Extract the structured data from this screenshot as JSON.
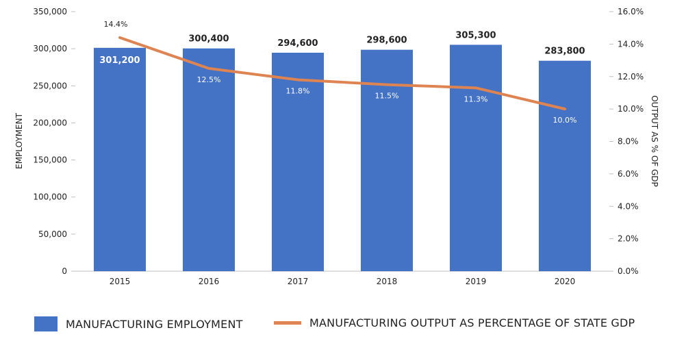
{
  "chart_data": {
    "type": "bar",
    "categories": [
      "2015",
      "2016",
      "2017",
      "2018",
      "2019",
      "2020"
    ],
    "series": [
      {
        "name": "MANUFACTURING EMPLOYMENT",
        "type": "bar",
        "axis": "left",
        "values": [
          301200,
          300400,
          294600,
          298600,
          305300,
          283800
        ],
        "labels": [
          "301,200",
          "300,400",
          "294,600",
          "298,600",
          "305,300",
          "283,800"
        ],
        "color": "#4472c4"
      },
      {
        "name": "MANUFACTURING OUTPUT AS PERCENTAGE OF STATE GDP",
        "type": "line",
        "axis": "right",
        "values": [
          14.4,
          12.5,
          11.8,
          11.5,
          11.3,
          10.0
        ],
        "labels": [
          "14.4%",
          "12.5%",
          "11.8%",
          "11.5%",
          "11.3%",
          "10.0%"
        ],
        "color": "#dd8452"
      }
    ],
    "ylabel": "EMPLOYMENT",
    "y2label": "OUTPUT AS % OF GDP",
    "ylim": [
      0,
      350000
    ],
    "yticks": [
      "0",
      "50,000",
      "100,000",
      "150,000",
      "200,000",
      "250,000",
      "300,000",
      "350,000"
    ],
    "y2lim": [
      0,
      16
    ],
    "y2ticks": [
      "0.0%",
      "2.0%",
      "4.0%",
      "6.0%",
      "8.0%",
      "10.0%",
      "12.0%",
      "14.0%",
      "16.0%"
    ],
    "grid": false,
    "legend_position": "bottom"
  }
}
